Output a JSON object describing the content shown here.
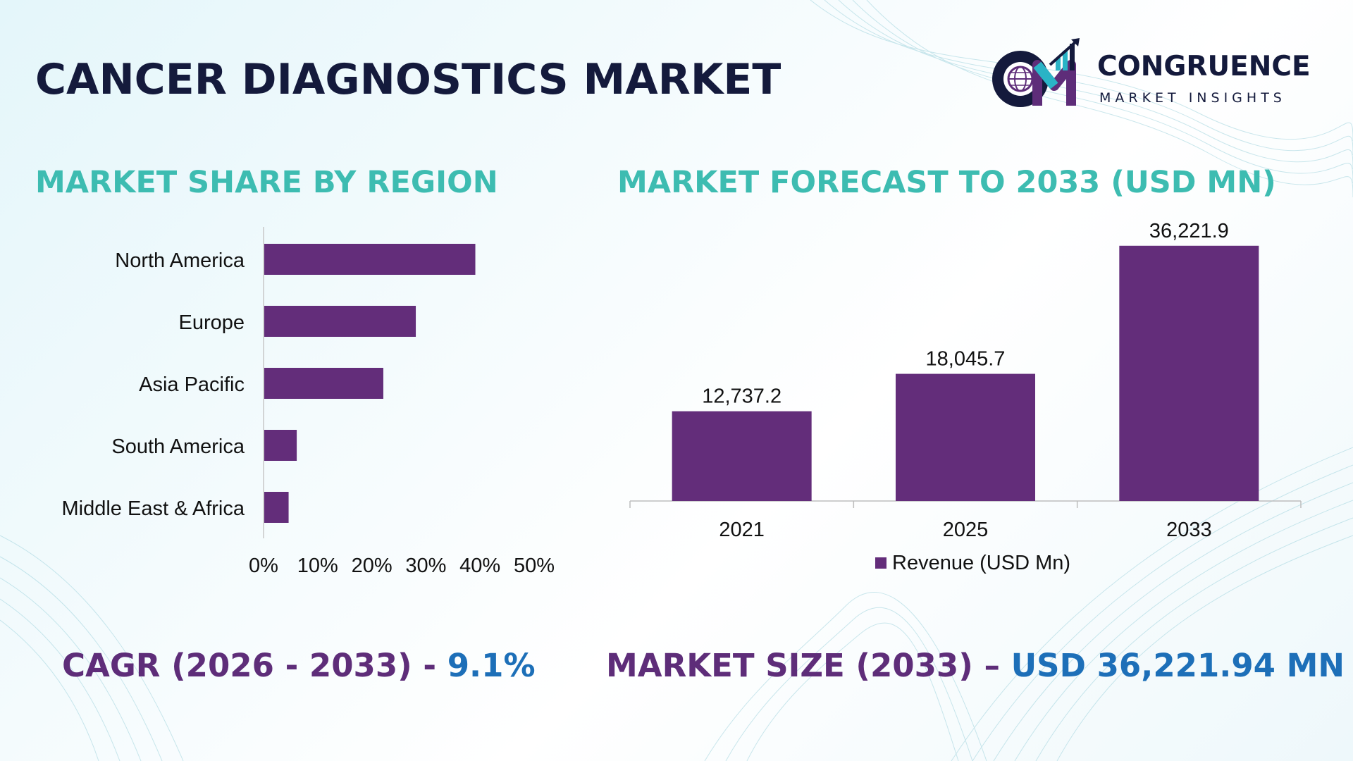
{
  "title": "CANCER DIAGNOSTICS MARKET",
  "logo": {
    "name": "CONGRUENCE",
    "tagline": "MARKET INSIGHTS",
    "icon": "cm-globe-logo-icon"
  },
  "colors": {
    "title": "#141a3c",
    "section_title": "#3dbcb1",
    "bar": "#632d7a",
    "stat_label": "#5e2d79",
    "stat_value": "#1d6fb8"
  },
  "region_section": {
    "title": "MARKET SHARE BY REGION"
  },
  "forecast_section": {
    "title": "MARKET FORECAST TO 2033 (USD MN)"
  },
  "chart_data": [
    {
      "type": "bar",
      "orientation": "horizontal",
      "categories": [
        "North America",
        "Europe",
        "Asia Pacific",
        "South America",
        "Middle East & Africa"
      ],
      "values": [
        39,
        28,
        22,
        6,
        4.5
      ],
      "xlim": [
        0,
        50
      ],
      "xticks": [
        "0%",
        "10%",
        "20%",
        "30%",
        "40%",
        "50%"
      ],
      "grid": false,
      "color": "#632d7a"
    },
    {
      "type": "bar",
      "categories": [
        "2021",
        "2025",
        "2033"
      ],
      "series": [
        {
          "name": "Revenue (USD Mn)",
          "values": [
            12737.2,
            18045.7,
            36221.9
          ]
        }
      ],
      "data_labels": [
        "12,737.2",
        "18,045.7",
        "36,221.9"
      ],
      "ylim": [
        0,
        40000
      ],
      "grid": false,
      "legend": "bottom",
      "color": "#632d7a"
    }
  ],
  "stats": {
    "cagr_label": "CAGR (2026 - 2033) - ",
    "cagr_value": "9.1%",
    "size_label": "MARKET SIZE (2033) – ",
    "size_value": "USD 36,221.94 MN"
  }
}
